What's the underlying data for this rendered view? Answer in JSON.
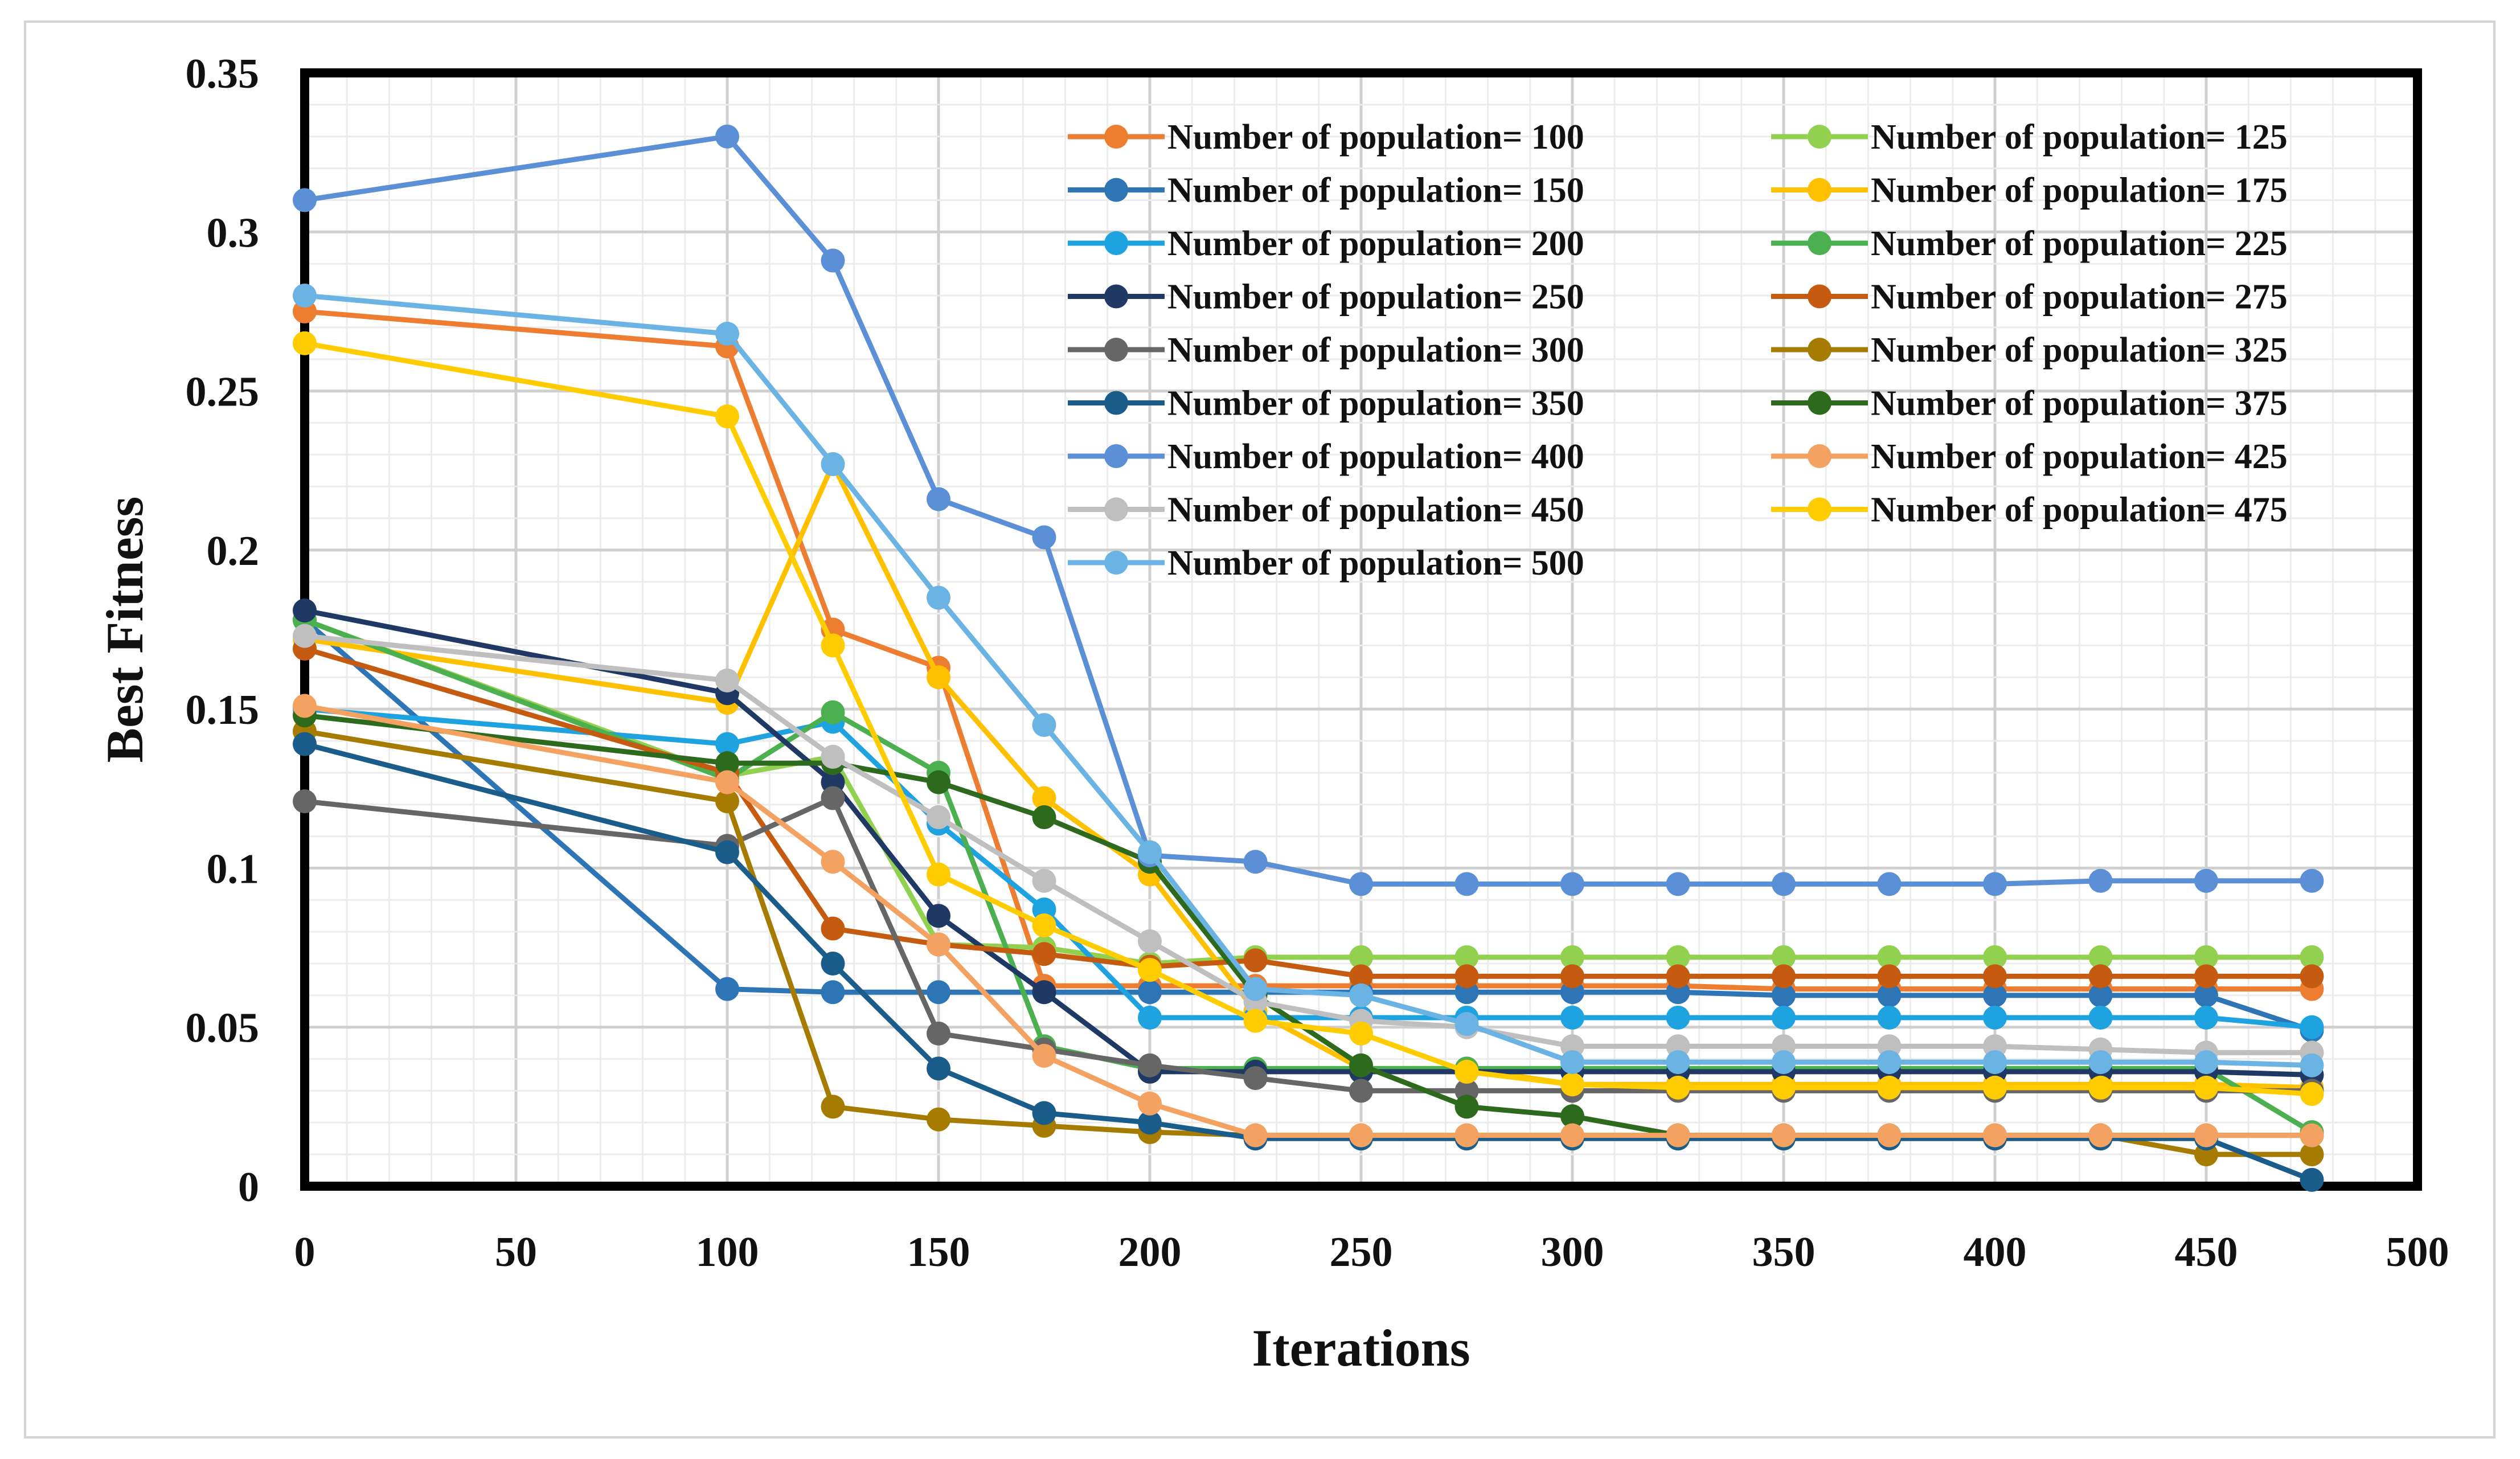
{
  "chart_data": {
    "type": "line",
    "title": "",
    "xlabel": "Iterations",
    "ylabel": "Best Fitness",
    "xlim": [
      0,
      500
    ],
    "ylim": [
      0,
      0.35
    ],
    "xticks": [
      0,
      50,
      100,
      150,
      200,
      250,
      300,
      350,
      400,
      450,
      500
    ],
    "yticks": [
      0,
      0.05,
      0.1,
      0.15,
      0.2,
      0.25,
      0.3,
      0.35
    ],
    "xtick_labels": [
      "0",
      "50",
      "100",
      "150",
      "200",
      "250",
      "300",
      "350",
      "400",
      "450",
      "500"
    ],
    "ytick_labels": [
      "0",
      "0.05",
      "0.1",
      "0.15",
      "0.2",
      "0.25",
      "0.3",
      "0.35"
    ],
    "grid": true,
    "legend_position": "top-right",
    "x": [
      0,
      100,
      125,
      150,
      175,
      200,
      225,
      250,
      275,
      300,
      325,
      350,
      375,
      400,
      425,
      450,
      475
    ],
    "series": [
      {
        "name": "Number of population= 100",
        "color": "#ED7D31",
        "values": [
          0.275,
          0.264,
          0.175,
          0.163,
          0.063,
          0.063,
          0.063,
          0.063,
          0.063,
          0.063,
          0.063,
          0.062,
          0.062,
          0.062,
          0.062,
          0.062,
          0.062
        ]
      },
      {
        "name": "Number of population= 125",
        "color": "#92D050",
        "values": [
          0.178,
          0.129,
          0.135,
          0.076,
          0.075,
          0.07,
          0.072,
          0.072,
          0.072,
          0.072,
          0.072,
          0.072,
          0.072,
          0.072,
          0.072,
          0.072,
          0.072
        ]
      },
      {
        "name": "Number of population= 150",
        "color": "#2E75B6",
        "values": [
          0.178,
          0.062,
          0.061,
          0.061,
          0.061,
          0.061,
          0.061,
          0.061,
          0.061,
          0.061,
          0.061,
          0.06,
          0.06,
          0.06,
          0.06,
          0.06,
          0.049
        ]
      },
      {
        "name": "Number of population= 175",
        "color": "#FFC000",
        "values": [
          0.172,
          0.152,
          0.227,
          0.16,
          0.122,
          0.098,
          0.055,
          0.037,
          0.037,
          0.032,
          0.032,
          0.032,
          0.032,
          0.032,
          0.032,
          0.032,
          0.031
        ]
      },
      {
        "name": "Number of population= 200",
        "color": "#1FA2E0",
        "values": [
          0.15,
          0.139,
          0.146,
          0.114,
          0.087,
          0.053,
          0.053,
          0.053,
          0.053,
          0.053,
          0.053,
          0.053,
          0.053,
          0.053,
          0.053,
          0.053,
          0.05
        ]
      },
      {
        "name": "Number of population= 225",
        "color": "#4CAF50",
        "values": [
          0.178,
          0.128,
          0.149,
          0.13,
          0.044,
          0.037,
          0.037,
          0.037,
          0.037,
          0.037,
          0.037,
          0.037,
          0.037,
          0.037,
          0.037,
          0.037,
          0.017
        ]
      },
      {
        "name": "Number of population= 250",
        "color": "#1F3864",
        "values": [
          0.181,
          0.155,
          0.127,
          0.085,
          0.061,
          0.036,
          0.036,
          0.036,
          0.036,
          0.036,
          0.036,
          0.036,
          0.036,
          0.036,
          0.036,
          0.036,
          0.035
        ]
      },
      {
        "name": "Number of population= 275",
        "color": "#C55A11",
        "values": [
          0.169,
          0.13,
          0.081,
          0.076,
          0.073,
          0.069,
          0.071,
          0.066,
          0.066,
          0.066,
          0.066,
          0.066,
          0.066,
          0.066,
          0.066,
          0.066,
          0.066
        ]
      },
      {
        "name": "Number of population= 300",
        "color": "#666666",
        "values": [
          0.121,
          0.107,
          0.122,
          0.048,
          0.043,
          0.038,
          0.034,
          0.03,
          0.03,
          0.03,
          0.03,
          0.03,
          0.03,
          0.03,
          0.03,
          0.03,
          0.03
        ]
      },
      {
        "name": "Number of population= 325",
        "color": "#A67C00",
        "values": [
          0.143,
          0.121,
          0.025,
          0.021,
          0.019,
          0.017,
          0.016,
          0.016,
          0.016,
          0.016,
          0.016,
          0.016,
          0.016,
          0.016,
          0.016,
          0.01,
          0.01
        ]
      },
      {
        "name": "Number of population= 350",
        "color": "#1A5C8A",
        "values": [
          0.139,
          0.105,
          0.07,
          0.037,
          0.023,
          0.02,
          0.015,
          0.015,
          0.015,
          0.015,
          0.015,
          0.015,
          0.015,
          0.015,
          0.015,
          0.015,
          0.002
        ]
      },
      {
        "name": "Number of population= 375",
        "color": "#2D6A1E",
        "values": [
          0.148,
          0.133,
          0.133,
          0.127,
          0.116,
          0.102,
          0.06,
          0.038,
          0.025,
          0.022,
          0.016,
          0.016,
          0.016,
          0.016,
          0.016,
          0.016,
          0.016
        ]
      },
      {
        "name": "Number of population= 400",
        "color": "#5B8FD6",
        "values": [
          0.31,
          0.33,
          0.291,
          0.216,
          0.204,
          0.104,
          0.102,
          0.095,
          0.095,
          0.095,
          0.095,
          0.095,
          0.095,
          0.095,
          0.096,
          0.096,
          0.096
        ]
      },
      {
        "name": "Number of population= 425",
        "color": "#F4A261",
        "values": [
          0.151,
          0.127,
          0.102,
          0.076,
          0.041,
          0.026,
          0.016,
          0.016,
          0.016,
          0.016,
          0.016,
          0.016,
          0.016,
          0.016,
          0.016,
          0.016,
          0.016
        ]
      },
      {
        "name": "Number of population= 450",
        "color": "#BFBFBF",
        "values": [
          0.173,
          0.159,
          0.135,
          0.116,
          0.096,
          0.077,
          0.058,
          0.052,
          0.05,
          0.044,
          0.044,
          0.044,
          0.044,
          0.044,
          0.043,
          0.042,
          0.042
        ]
      },
      {
        "name": "Number of population= 475",
        "color": "#FFCC00",
        "values": [
          0.265,
          0.242,
          0.17,
          0.098,
          0.082,
          0.068,
          0.052,
          0.048,
          0.036,
          0.032,
          0.031,
          0.031,
          0.031,
          0.031,
          0.031,
          0.031,
          0.029
        ]
      },
      {
        "name": "Number of population= 500",
        "color": "#6BB3E3",
        "values": [
          0.28,
          0.268,
          0.227,
          0.185,
          0.145,
          0.105,
          0.062,
          0.06,
          0.051,
          0.039,
          0.039,
          0.039,
          0.039,
          0.039,
          0.039,
          0.039,
          0.038
        ]
      }
    ]
  }
}
